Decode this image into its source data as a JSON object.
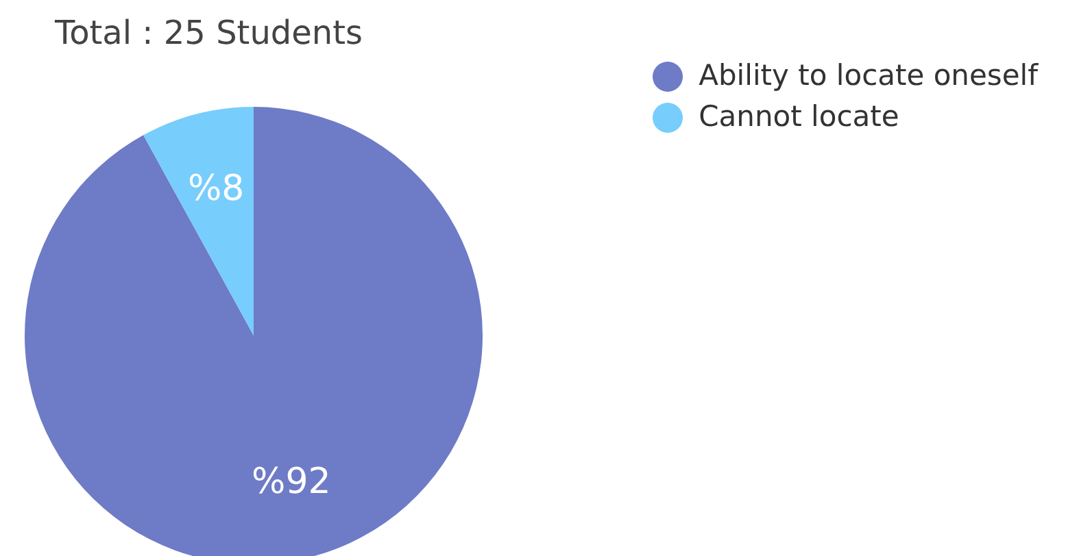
{
  "chart_data": {
    "type": "pie",
    "title": "Total : 25 Students",
    "categories": [
      "Ability to locate oneself",
      "Cannot locate"
    ],
    "values": [
      92,
      8
    ],
    "colors": [
      "#6e7bc6",
      "#77cdfb"
    ],
    "value_labels": [
      "%92",
      "%8"
    ],
    "legend": "top right"
  }
}
